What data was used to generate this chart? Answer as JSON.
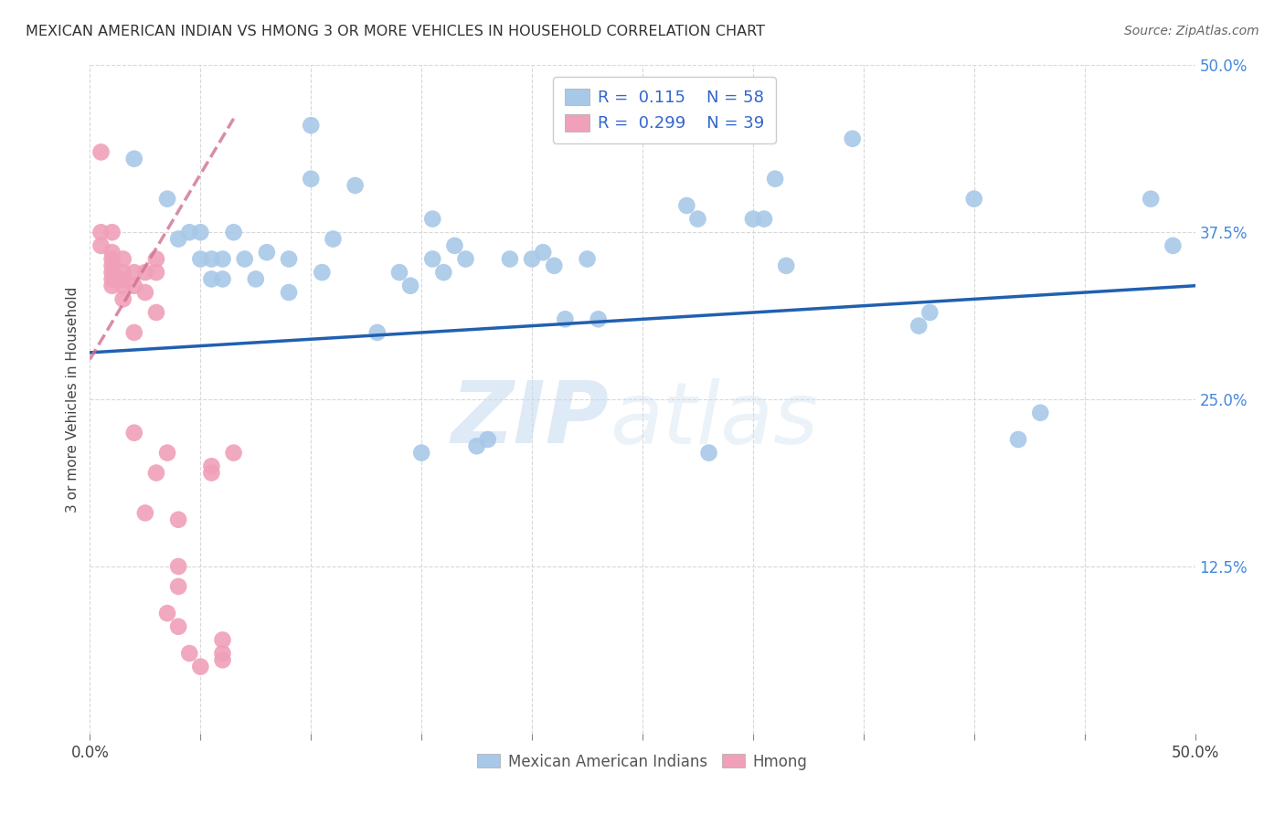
{
  "title": "MEXICAN AMERICAN INDIAN VS HMONG 3 OR MORE VEHICLES IN HOUSEHOLD CORRELATION CHART",
  "source": "Source: ZipAtlas.com",
  "ylabel": "3 or more Vehicles in Household",
  "xmin": 0.0,
  "xmax": 0.5,
  "ymin": 0.0,
  "ymax": 0.5,
  "blue_R": 0.115,
  "blue_N": 58,
  "pink_R": 0.299,
  "pink_N": 39,
  "blue_color": "#a8c8e8",
  "pink_color": "#f0a0b8",
  "blue_edge_color": "#80aad0",
  "pink_edge_color": "#d07090",
  "blue_line_color": "#2060b0",
  "pink_line_color": "#d07090",
  "watermark_zip": "ZIP",
  "watermark_atlas": "atlas",
  "blue_scatter_x": [
    0.02,
    0.035,
    0.04,
    0.045,
    0.05,
    0.05,
    0.055,
    0.055,
    0.06,
    0.06,
    0.065,
    0.07,
    0.075,
    0.08,
    0.09,
    0.09,
    0.1,
    0.1,
    0.105,
    0.11,
    0.12,
    0.13,
    0.14,
    0.145,
    0.15,
    0.155,
    0.155,
    0.16,
    0.165,
    0.17,
    0.175,
    0.18,
    0.19,
    0.2,
    0.205,
    0.21,
    0.215,
    0.225,
    0.23,
    0.27,
    0.275,
    0.28,
    0.3,
    0.305,
    0.31,
    0.315,
    0.345,
    0.375,
    0.38,
    0.4,
    0.42,
    0.43,
    0.48,
    0.49
  ],
  "blue_scatter_y": [
    0.43,
    0.4,
    0.37,
    0.375,
    0.355,
    0.375,
    0.355,
    0.34,
    0.355,
    0.34,
    0.375,
    0.355,
    0.34,
    0.36,
    0.355,
    0.33,
    0.455,
    0.415,
    0.345,
    0.37,
    0.41,
    0.3,
    0.345,
    0.335,
    0.21,
    0.385,
    0.355,
    0.345,
    0.365,
    0.355,
    0.215,
    0.22,
    0.355,
    0.355,
    0.36,
    0.35,
    0.31,
    0.355,
    0.31,
    0.395,
    0.385,
    0.21,
    0.385,
    0.385,
    0.415,
    0.35,
    0.445,
    0.305,
    0.315,
    0.4,
    0.22,
    0.24,
    0.4,
    0.365
  ],
  "pink_scatter_x": [
    0.005,
    0.005,
    0.01,
    0.01,
    0.01,
    0.01,
    0.01,
    0.01,
    0.01,
    0.015,
    0.015,
    0.015,
    0.015,
    0.015,
    0.02,
    0.02,
    0.02,
    0.02,
    0.025,
    0.025,
    0.025,
    0.03,
    0.03,
    0.03,
    0.03,
    0.035,
    0.035,
    0.04,
    0.04,
    0.04,
    0.04,
    0.045,
    0.05,
    0.055,
    0.055,
    0.06,
    0.06,
    0.06,
    0.065
  ],
  "pink_scatter_y": [
    0.375,
    0.365,
    0.375,
    0.36,
    0.355,
    0.35,
    0.34,
    0.335,
    0.345,
    0.355,
    0.345,
    0.335,
    0.325,
    0.34,
    0.345,
    0.335,
    0.3,
    0.225,
    0.345,
    0.33,
    0.165,
    0.355,
    0.345,
    0.315,
    0.195,
    0.21,
    0.09,
    0.16,
    0.125,
    0.11,
    0.08,
    0.06,
    0.05,
    0.2,
    0.195,
    0.055,
    0.06,
    0.07,
    0.21
  ],
  "pink_above_x": [
    0.005
  ],
  "pink_above_y": [
    0.435
  ],
  "blue_trend_x": [
    0.0,
    0.5
  ],
  "blue_trend_y": [
    0.285,
    0.335
  ],
  "pink_trend_x": [
    0.0,
    0.065
  ],
  "pink_trend_y": [
    0.28,
    0.46
  ],
  "grid_color": "#d8d8d8",
  "bg_color": "#ffffff"
}
